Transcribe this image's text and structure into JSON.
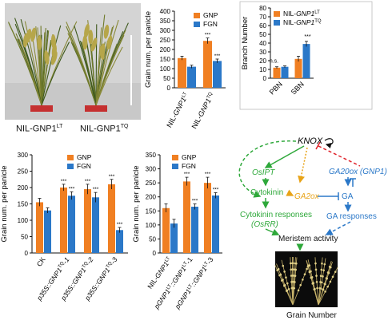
{
  "photo_plants": {
    "label_left": "NIL-GNP1",
    "label_left_sup": "LT",
    "label_right": "NIL-GNP1",
    "label_right_sup": "TQ"
  },
  "colors": {
    "gnp": "#f07f22",
    "fgn": "#2b78c8",
    "green": "#2ea83a",
    "blue_text": "#2b78c8",
    "orange_text": "#e8a317",
    "red": "#e0232b"
  },
  "chart_data": [
    {
      "type": "bar",
      "id": "chartA",
      "ylabel": "Grain num. per panicle",
      "ylim": [
        0,
        400
      ],
      "yticks": [
        "0",
        "50",
        "100",
        "150",
        "200",
        "250",
        "300",
        "350",
        "400"
      ],
      "categories": [
        "NIL-GNP1LT",
        "NIL-GNP1TQ"
      ],
      "category_parts": [
        {
          "base": "NIL-",
          "ital": "GNP1",
          "sup": "LT"
        },
        {
          "base": "NIL-",
          "ital": "GNP1",
          "sup": "TQ"
        }
      ],
      "legend": [
        "GNP",
        "FGN"
      ],
      "series": [
        {
          "name": "GNP",
          "values": [
            155,
            245
          ],
          "err": [
            10,
            15
          ],
          "sig": [
            "",
            "***"
          ]
        },
        {
          "name": "FGN",
          "values": [
            110,
            140
          ],
          "err": [
            8,
            10
          ],
          "sig": [
            "",
            "***"
          ]
        }
      ]
    },
    {
      "type": "bar",
      "id": "chartB",
      "ylabel": "Branch Number",
      "ylim": [
        0,
        80
      ],
      "yticks": [
        "0",
        "10",
        "20",
        "30",
        "40",
        "50",
        "60",
        "70",
        "80"
      ],
      "categories": [
        "PBN",
        "SBN"
      ],
      "legend": [
        "NIL-GNP1LT",
        "NIL-GNP1TQ"
      ],
      "legend_parts": [
        {
          "base": "NIL-",
          "ital": "GNP1",
          "sup": "LT"
        },
        {
          "base": "NIL-",
          "ital": "GNP1",
          "sup": "TQ"
        }
      ],
      "annotations": [
        "n.s.",
        "***"
      ],
      "series": [
        {
          "name": "NIL-GNP1LT",
          "values": [
            12,
            22
          ],
          "err": [
            1,
            3
          ]
        },
        {
          "name": "NIL-GNP1TQ",
          "values": [
            13,
            39
          ],
          "err": [
            1,
            3
          ]
        }
      ]
    },
    {
      "type": "bar",
      "id": "chartC",
      "ylabel": "Grain num. per panicle",
      "ylim": [
        0,
        300
      ],
      "yticks": [
        "0",
        "50",
        "100",
        "150",
        "200",
        "250",
        "300"
      ],
      "categories": [
        "CK",
        "p35S::GNP1TQ-1",
        "p35S::GNP1TQ-2",
        "p35S::GNP1TQ-3"
      ],
      "category_parts": [
        {
          "base": "CK",
          "ital": "",
          "sup": "",
          "post": ""
        },
        {
          "base": "",
          "ital": "p35S::GNP1",
          "sup": "TQ",
          "post": "-1"
        },
        {
          "base": "",
          "ital": "p35S::GNP1",
          "sup": "TQ",
          "post": "-2"
        },
        {
          "base": "",
          "ital": "p35S::GNP1",
          "sup": "TQ",
          "post": "-3"
        }
      ],
      "legend": [
        "GNP",
        "FGN"
      ],
      "series": [
        {
          "name": "GNP",
          "values": [
            155,
            200,
            195,
            210
          ],
          "err": [
            12,
            10,
            15,
            15
          ],
          "sig": [
            "",
            "***",
            "***",
            "***"
          ]
        },
        {
          "name": "FGN",
          "values": [
            130,
            175,
            170,
            70
          ],
          "err": [
            8,
            12,
            15,
            8
          ],
          "sig": [
            "",
            "***",
            "***",
            "***"
          ]
        }
      ]
    },
    {
      "type": "bar",
      "id": "chartD",
      "ylabel": "Grain num. per panicle",
      "ylim": [
        0,
        350
      ],
      "yticks": [
        "0",
        "50",
        "100",
        "150",
        "200",
        "250",
        "300",
        "350"
      ],
      "categories": [
        "NIL-GNP1LT",
        "pGNP1LT::GNP1LT-1",
        "pGNP1LT::GNP1LT-3"
      ],
      "category_parts": [
        {
          "base": "NIL-",
          "ital": "GNP1",
          "sup": "LT",
          "post": ""
        },
        {
          "base": "",
          "ital": "pGNP1",
          "sup": "LT",
          "post": "::GNP1",
          "sup2": "LT",
          "post2": "-1"
        },
        {
          "base": "",
          "ital": "pGNP1",
          "sup": "LT",
          "post": "::GNP1",
          "sup2": "LT",
          "post2": "-3"
        }
      ],
      "legend": [
        "GNP",
        "FGN"
      ],
      "series": [
        {
          "name": "GNP",
          "values": [
            160,
            255,
            250
          ],
          "err": [
            15,
            15,
            20
          ],
          "sig": [
            "",
            "***",
            "***"
          ]
        },
        {
          "name": "FGN",
          "values": [
            105,
            165,
            205
          ],
          "err": [
            15,
            10,
            10
          ],
          "sig": [
            "",
            "***",
            "***"
          ]
        }
      ]
    }
  ],
  "diagram": {
    "knox": "KNOX",
    "osipt": "OsIPT",
    "ga20ox_gnp1": "GA20ox (GNP1)",
    "cytokinin": "Cytokinin",
    "ga2ox": "GA2ox",
    "ga": "GA",
    "ck_responses_1": "Cytokinin responses",
    "ck_responses_2": "(OsRR)",
    "ga_responses": "GA responses",
    "meristem": "Meristem activity",
    "grain_number": "Grain Number"
  }
}
